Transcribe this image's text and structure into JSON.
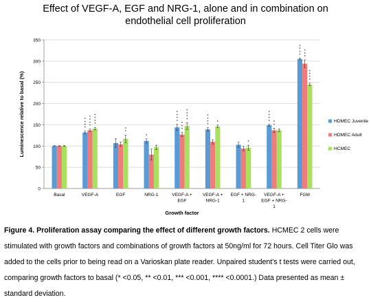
{
  "chart_data": {
    "type": "bar",
    "title_lines": [
      "Effect of VEGF-A, EGF and NRG-1, alone and in combination on",
      "endothelial cell proliferation"
    ],
    "xlabel": "Growth factor",
    "ylabel": "Luminescence relative to basal (%)",
    "ylim": [
      0,
      350
    ],
    "yticks": [
      "0",
      "50",
      "100",
      "150",
      "200",
      "250",
      "300",
      "350"
    ],
    "grid": true,
    "legend_position": "right",
    "categories": [
      [
        "Basal"
      ],
      [
        "VEGF-A"
      ],
      [
        "EGF"
      ],
      [
        "NRG-1"
      ],
      [
        "VEGF-A +",
        "EGF"
      ],
      [
        "VEGF-A +",
        "NRG-1"
      ],
      [
        "EGF + NRG-",
        "1"
      ],
      [
        "VEGF-A +",
        "EGF + NRG-",
        "1"
      ],
      [
        "FGM"
      ]
    ],
    "series": [
      {
        "name": "HDMEC Juvenile",
        "color": "#5b9bd5",
        "values": [
          100,
          132,
          107,
          112,
          144,
          139,
          103,
          149,
          305
        ],
        "errors": [
          1,
          3,
          10,
          5,
          7,
          4,
          6,
          2,
          2
        ],
        "stars": [
          "",
          "****",
          "",
          "*",
          "****",
          "****",
          "",
          "****",
          "****"
        ]
      },
      {
        "name": "HDMEC Adult",
        "color": "#f07b7b",
        "values": [
          100,
          137,
          104,
          80,
          127,
          110,
          94,
          137,
          294
        ],
        "errors": [
          1,
          3,
          5,
          13,
          5,
          5,
          5,
          5,
          9
        ],
        "stars": [
          "",
          "****",
          "",
          "",
          "***",
          "",
          "",
          "**",
          "***"
        ]
      },
      {
        "name": "HCMEC",
        "color": "#a9e060",
        "values": [
          100,
          141,
          117,
          97,
          147,
          146,
          96,
          137,
          245
        ],
        "errors": [
          1,
          3,
          9,
          5,
          8,
          3,
          6,
          3,
          3
        ],
        "stars": [
          "",
          "****",
          "**",
          "",
          "****",
          "*",
          "*",
          "",
          "****"
        ]
      }
    ]
  },
  "caption": {
    "bold": "Figure 4. Proliferation assay comparing the effect of different growth factors.",
    "text": " HCMEC 2 cells  were stimulated with growth factors and combinations of growth factors at 50ng/ml for 72 hours. Cell Titer Glo was added to the cells prior to being read on a Varioskan plate reader. Unpaired student’s t tests were carried out, comparing growth factors to basal (* <0.05, ** <0.01, *** <0.001, **** <0.0001.) Data presented as mean ± standard deviation."
  }
}
